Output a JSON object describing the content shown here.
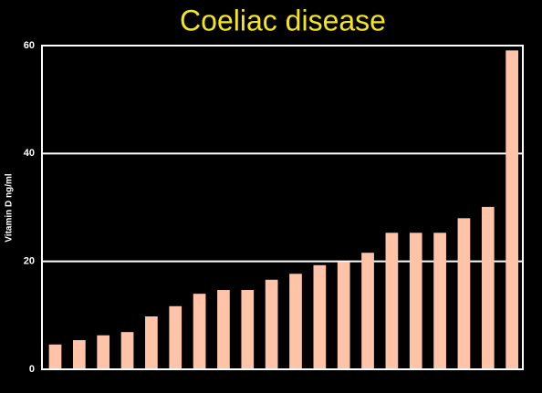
{
  "chart_data": {
    "type": "bar",
    "title": "Coeliac disease",
    "ylabel": "Vitamin D ng/ml",
    "categories": [
      null,
      null,
      null,
      null,
      null,
      null,
      null,
      null,
      null,
      null,
      null,
      null,
      null,
      null,
      null,
      null,
      null,
      null,
      null,
      null
    ],
    "values": [
      4.6,
      5.4,
      6.3,
      6.9,
      9.8,
      11.7,
      14.0,
      14.7,
      14.7,
      16.6,
      17.7,
      19.3,
      19.9,
      21.6,
      25.3,
      25.3,
      25.3,
      28.0,
      30.1,
      59.1
    ],
    "color": "#ffc4a8",
    "ylim": [
      0,
      60
    ],
    "yticks": [
      0,
      20,
      40,
      60
    ],
    "grid": true
  }
}
